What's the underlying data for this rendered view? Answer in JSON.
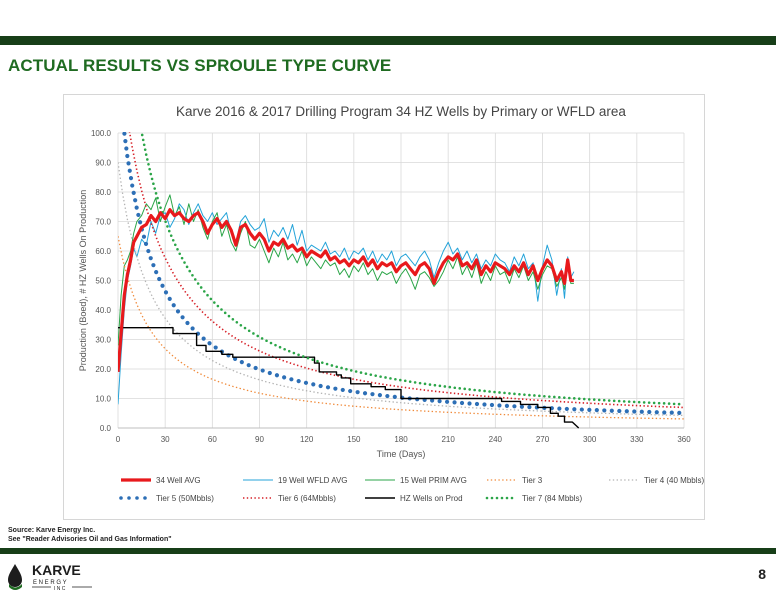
{
  "slide": {
    "title": "ACTUAL RESULTS VS SPROULE TYPE CURVE",
    "source_line1": "Source: Karve Energy Inc.",
    "source_line2": "See \"Reader Advisories Oil and Gas Information\"",
    "page_number": "8",
    "logo_word": "KARVE",
    "logo_sub": "E N E R G Y",
    "logo_inc": "I N C",
    "colors": {
      "brand_dark": "#173e18",
      "title_green": "#1f6b21"
    }
  },
  "chart_data": {
    "type": "line",
    "title": "Karve 2016 & 2017 Drilling Program 34 HZ Wells by Primary or WFLD area",
    "xlabel": "Time (Days)",
    "ylabel": "Production (Boed), # HZ Wells On Production",
    "xlim": [
      0,
      360
    ],
    "ylim": [
      0,
      100
    ],
    "xticks": [
      0,
      30,
      60,
      90,
      120,
      150,
      180,
      210,
      240,
      270,
      300,
      330,
      360
    ],
    "yticks": [
      "0.0",
      "10.0",
      "20.0",
      "30.0",
      "40.0",
      "50.0",
      "60.0",
      "70.0",
      "80.0",
      "90.0",
      "100.0"
    ],
    "grid": true,
    "legend_position": "bottom",
    "series": [
      {
        "name": "34 Well AVG",
        "color": "#e8191c",
        "style": "solid",
        "width": 3.2,
        "x": [
          0,
          2,
          4,
          6,
          8,
          10,
          12,
          15,
          18,
          21,
          24,
          27,
          30,
          33,
          36,
          39,
          42,
          45,
          48,
          51,
          54,
          57,
          60,
          63,
          66,
          69,
          72,
          75,
          78,
          81,
          84,
          87,
          90,
          93,
          96,
          99,
          102,
          105,
          108,
          111,
          114,
          117,
          120,
          123,
          126,
          129,
          132,
          135,
          138,
          141,
          144,
          147,
          150,
          153,
          156,
          159,
          162,
          165,
          168,
          171,
          174,
          177,
          180,
          183,
          186,
          189,
          192,
          195,
          198,
          201,
          204,
          207,
          210,
          213,
          216,
          219,
          222,
          225,
          228,
          231,
          234,
          237,
          240,
          243,
          246,
          249,
          252,
          255,
          258,
          261,
          264,
          267,
          270,
          273,
          276,
          279,
          282,
          284,
          286,
          288,
          290
        ],
        "y": [
          19,
          32,
          45,
          52,
          57,
          63,
          65,
          68,
          69,
          72,
          70,
          73,
          71,
          74,
          72,
          73,
          71,
          70,
          72,
          73,
          70,
          66,
          69,
          71,
          68,
          70,
          67,
          62,
          68,
          69,
          66,
          64,
          66,
          64,
          60,
          63,
          62,
          64,
          61,
          62,
          60,
          61,
          58,
          60,
          59,
          58,
          60,
          57,
          58,
          56,
          57,
          55,
          57,
          56,
          58,
          55,
          57,
          54,
          56,
          55,
          56,
          53,
          55,
          56,
          54,
          52,
          55,
          56,
          54,
          49,
          53,
          56,
          58,
          57,
          59,
          55,
          56,
          54,
          57,
          52,
          55,
          53,
          56,
          55,
          54,
          52,
          55,
          53,
          56,
          52,
          55,
          50,
          54,
          57,
          55,
          50,
          53,
          49,
          57,
          50,
          50
        ]
      },
      {
        "name": "19 Well WFLD AVG",
        "color": "#24a3d9",
        "style": "solid",
        "width": 1,
        "x": [
          0,
          2,
          4,
          6,
          8,
          10,
          12,
          15,
          18,
          21,
          24,
          27,
          30,
          33,
          36,
          39,
          42,
          45,
          48,
          51,
          54,
          57,
          60,
          63,
          66,
          69,
          72,
          75,
          78,
          81,
          84,
          87,
          90,
          93,
          96,
          99,
          102,
          105,
          108,
          111,
          114,
          117,
          120,
          123,
          126,
          129,
          132,
          135,
          138,
          141,
          144,
          147,
          150,
          153,
          156,
          159,
          162,
          165,
          168,
          171,
          174,
          177,
          180,
          183,
          186,
          189,
          192,
          195,
          198,
          201,
          204,
          207,
          210,
          213,
          216,
          219,
          222,
          225,
          228,
          231,
          234,
          237,
          240,
          243,
          246,
          249,
          252,
          255,
          258,
          261,
          264,
          267,
          270,
          273,
          276,
          279,
          282,
          284,
          286,
          288,
          290
        ],
        "y": [
          8,
          25,
          40,
          50,
          55,
          61,
          58,
          64,
          62,
          70,
          66,
          72,
          73,
          68,
          71,
          76,
          74,
          69,
          73,
          76,
          72,
          70,
          73,
          69,
          71,
          73,
          66,
          63,
          70,
          72,
          69,
          67,
          68,
          71,
          63,
          67,
          65,
          68,
          64,
          69,
          62,
          67,
          60,
          62,
          61,
          60,
          63,
          59,
          60,
          58,
          61,
          57,
          60,
          59,
          61,
          57,
          60,
          56,
          59,
          57,
          60,
          55,
          58,
          59,
          57,
          55,
          58,
          60,
          57,
          51,
          56,
          60,
          63,
          59,
          61,
          57,
          60,
          56,
          59,
          54,
          57,
          55,
          59,
          57,
          56,
          53,
          58,
          55,
          59,
          54,
          56,
          43,
          55,
          62,
          57,
          45,
          54,
          44,
          58,
          51,
          53
        ]
      },
      {
        "name": "15 Well PRIM AVG",
        "color": "#2ba548",
        "style": "solid",
        "width": 1,
        "x": [
          0,
          2,
          4,
          6,
          8,
          10,
          12,
          15,
          18,
          21,
          24,
          27,
          30,
          33,
          36,
          39,
          42,
          45,
          48,
          51,
          54,
          57,
          60,
          63,
          66,
          69,
          72,
          75,
          78,
          81,
          84,
          87,
          90,
          93,
          96,
          99,
          102,
          105,
          108,
          111,
          114,
          117,
          120,
          123,
          126,
          129,
          132,
          135,
          138,
          141,
          144,
          147,
          150,
          153,
          156,
          159,
          162,
          165,
          168,
          171,
          174,
          177,
          180,
          183,
          186,
          189,
          192,
          195,
          198,
          201,
          204,
          207,
          210,
          213,
          216,
          219,
          222,
          225,
          228,
          231,
          234,
          237,
          240,
          243,
          246,
          249,
          252,
          255,
          258,
          261,
          264,
          267,
          270,
          273,
          276,
          279,
          282,
          284,
          286,
          288,
          290
        ],
        "y": [
          28,
          45,
          55,
          57,
          60,
          66,
          70,
          72,
          76,
          74,
          78,
          70,
          75,
          79,
          72,
          75,
          69,
          76,
          70,
          74,
          68,
          64,
          70,
          73,
          65,
          69,
          63,
          60,
          66,
          70,
          62,
          61,
          64,
          60,
          56,
          61,
          58,
          63,
          57,
          59,
          56,
          60,
          55,
          58,
          56,
          54,
          57,
          55,
          56,
          52,
          54,
          51,
          55,
          53,
          56,
          52,
          54,
          50,
          53,
          52,
          53,
          49,
          52,
          54,
          51,
          47,
          52,
          53,
          51,
          48,
          50,
          53,
          57,
          54,
          58,
          52,
          55,
          51,
          56,
          49,
          53,
          50,
          55,
          52,
          53,
          49,
          54,
          51,
          55,
          50,
          53,
          47,
          52,
          55,
          54,
          48,
          51,
          47,
          56,
          49,
          49
        ]
      },
      {
        "name": "Tier 3",
        "color": "#f08a3a",
        "style": "dotted",
        "width": 1.3,
        "x": "curve",
        "qi": 65,
        "b": 0.9,
        "d": 0.045
      },
      {
        "name": "Tier 4 (40 Mbbls)",
        "color": "#b3b3b3",
        "style": "dotted",
        "width": 1.3,
        "x": "curve",
        "qi": 90,
        "b": 0.9,
        "d": 0.045
      },
      {
        "name": "Tier 5 (50Mbbls)",
        "color": "#2d6fb6",
        "style": "bigdots",
        "width": 4.2,
        "x": "curve",
        "qi": 120,
        "b": 0.9,
        "d": 0.05
      },
      {
        "name": "Tier 6 (64Mbbls)",
        "color": "#d61f26",
        "style": "dotted",
        "width": 1.6,
        "x": "curve",
        "qi": 130,
        "b": 0.9,
        "d": 0.04
      },
      {
        "name": "HZ Wells on Prod",
        "color": "#000000",
        "style": "solid",
        "width": 1.4,
        "x": [
          0,
          35,
          35,
          50,
          50,
          56,
          56,
          66,
          66,
          73,
          73,
          90,
          90,
          125,
          125,
          128,
          128,
          136,
          136,
          139,
          139,
          142,
          142,
          148,
          148,
          161,
          161,
          170,
          170,
          180,
          180,
          196,
          196,
          244,
          244,
          256,
          256,
          263,
          263,
          267,
          267,
          275,
          275,
          280,
          280,
          284,
          284,
          289,
          289,
          293
        ],
        "y": [
          34,
          34,
          32,
          32,
          28,
          28,
          26,
          26,
          25,
          25,
          24,
          24,
          24,
          24,
          22,
          22,
          19,
          19,
          19,
          19,
          18,
          18,
          17,
          17,
          15,
          15,
          14,
          14,
          13,
          13,
          10,
          10,
          10,
          10,
          9,
          9,
          8,
          8,
          8,
          8,
          7,
          7,
          5,
          5,
          4,
          4,
          2,
          2,
          2,
          0
        ]
      },
      {
        "name": "Tier 7 (84 Mbbls)",
        "color": "#2ba548",
        "style": "greendots",
        "width": 2.6,
        "x": "curve",
        "qi": 170,
        "b": 0.9,
        "d": 0.045
      }
    ],
    "legend": [
      [
        "34 Well AVG",
        "19 Well WFLD AVG",
        "15 Well PRIM AVG",
        "Tier 3",
        "Tier 4 (40 Mbbls)"
      ],
      [
        "Tier 5 (50Mbbls)",
        "Tier 6 (64Mbbls)",
        "HZ Wells on Prod",
        "Tier 7 (84 Mbbls)"
      ]
    ]
  }
}
